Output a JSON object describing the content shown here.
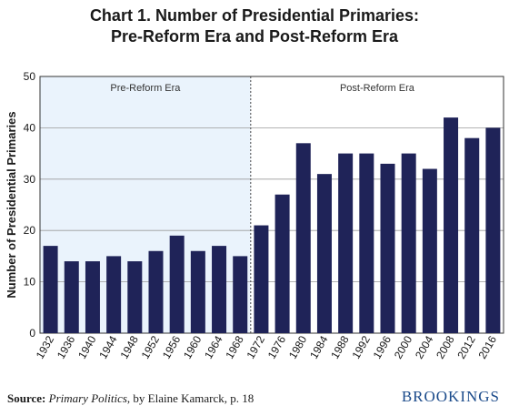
{
  "chart_data": {
    "type": "bar",
    "title_line1": "Chart 1. Number of Presidential Primaries:",
    "title_line2": "Pre-Reform Era and Post-Reform Era",
    "ylabel": "Number of Presidential Primaries",
    "xlabel": "",
    "ylim": [
      0,
      50
    ],
    "yticks": [
      0,
      10,
      20,
      30,
      40,
      50
    ],
    "categories": [
      "1932",
      "1936",
      "1940",
      "1944",
      "1948",
      "1952",
      "1956",
      "1960",
      "1964",
      "1968",
      "1972",
      "1976",
      "1980",
      "1984",
      "1988",
      "1992",
      "1996",
      "2000",
      "2004",
      "2008",
      "2012",
      "2016"
    ],
    "values": [
      17,
      14,
      14,
      15,
      14,
      16,
      19,
      16,
      17,
      15,
      21,
      27,
      37,
      31,
      35,
      35,
      33,
      35,
      32,
      42,
      38,
      40
    ],
    "bar_color": "#1f2358",
    "regions": [
      {
        "label": "Pre-Reform Era",
        "from": "1932",
        "to": "1968",
        "shade": "#eaf3fc"
      },
      {
        "label": "Post-Reform Era",
        "from": "1972",
        "to": "2016",
        "shade": "#ffffff"
      }
    ],
    "grid": true,
    "legend": "none"
  },
  "footer": {
    "source_label": "Source:",
    "source_title": "Primary Politics",
    "source_rest": ", by Elaine Kamarck, p. 18",
    "brand": "BROOKINGS"
  }
}
